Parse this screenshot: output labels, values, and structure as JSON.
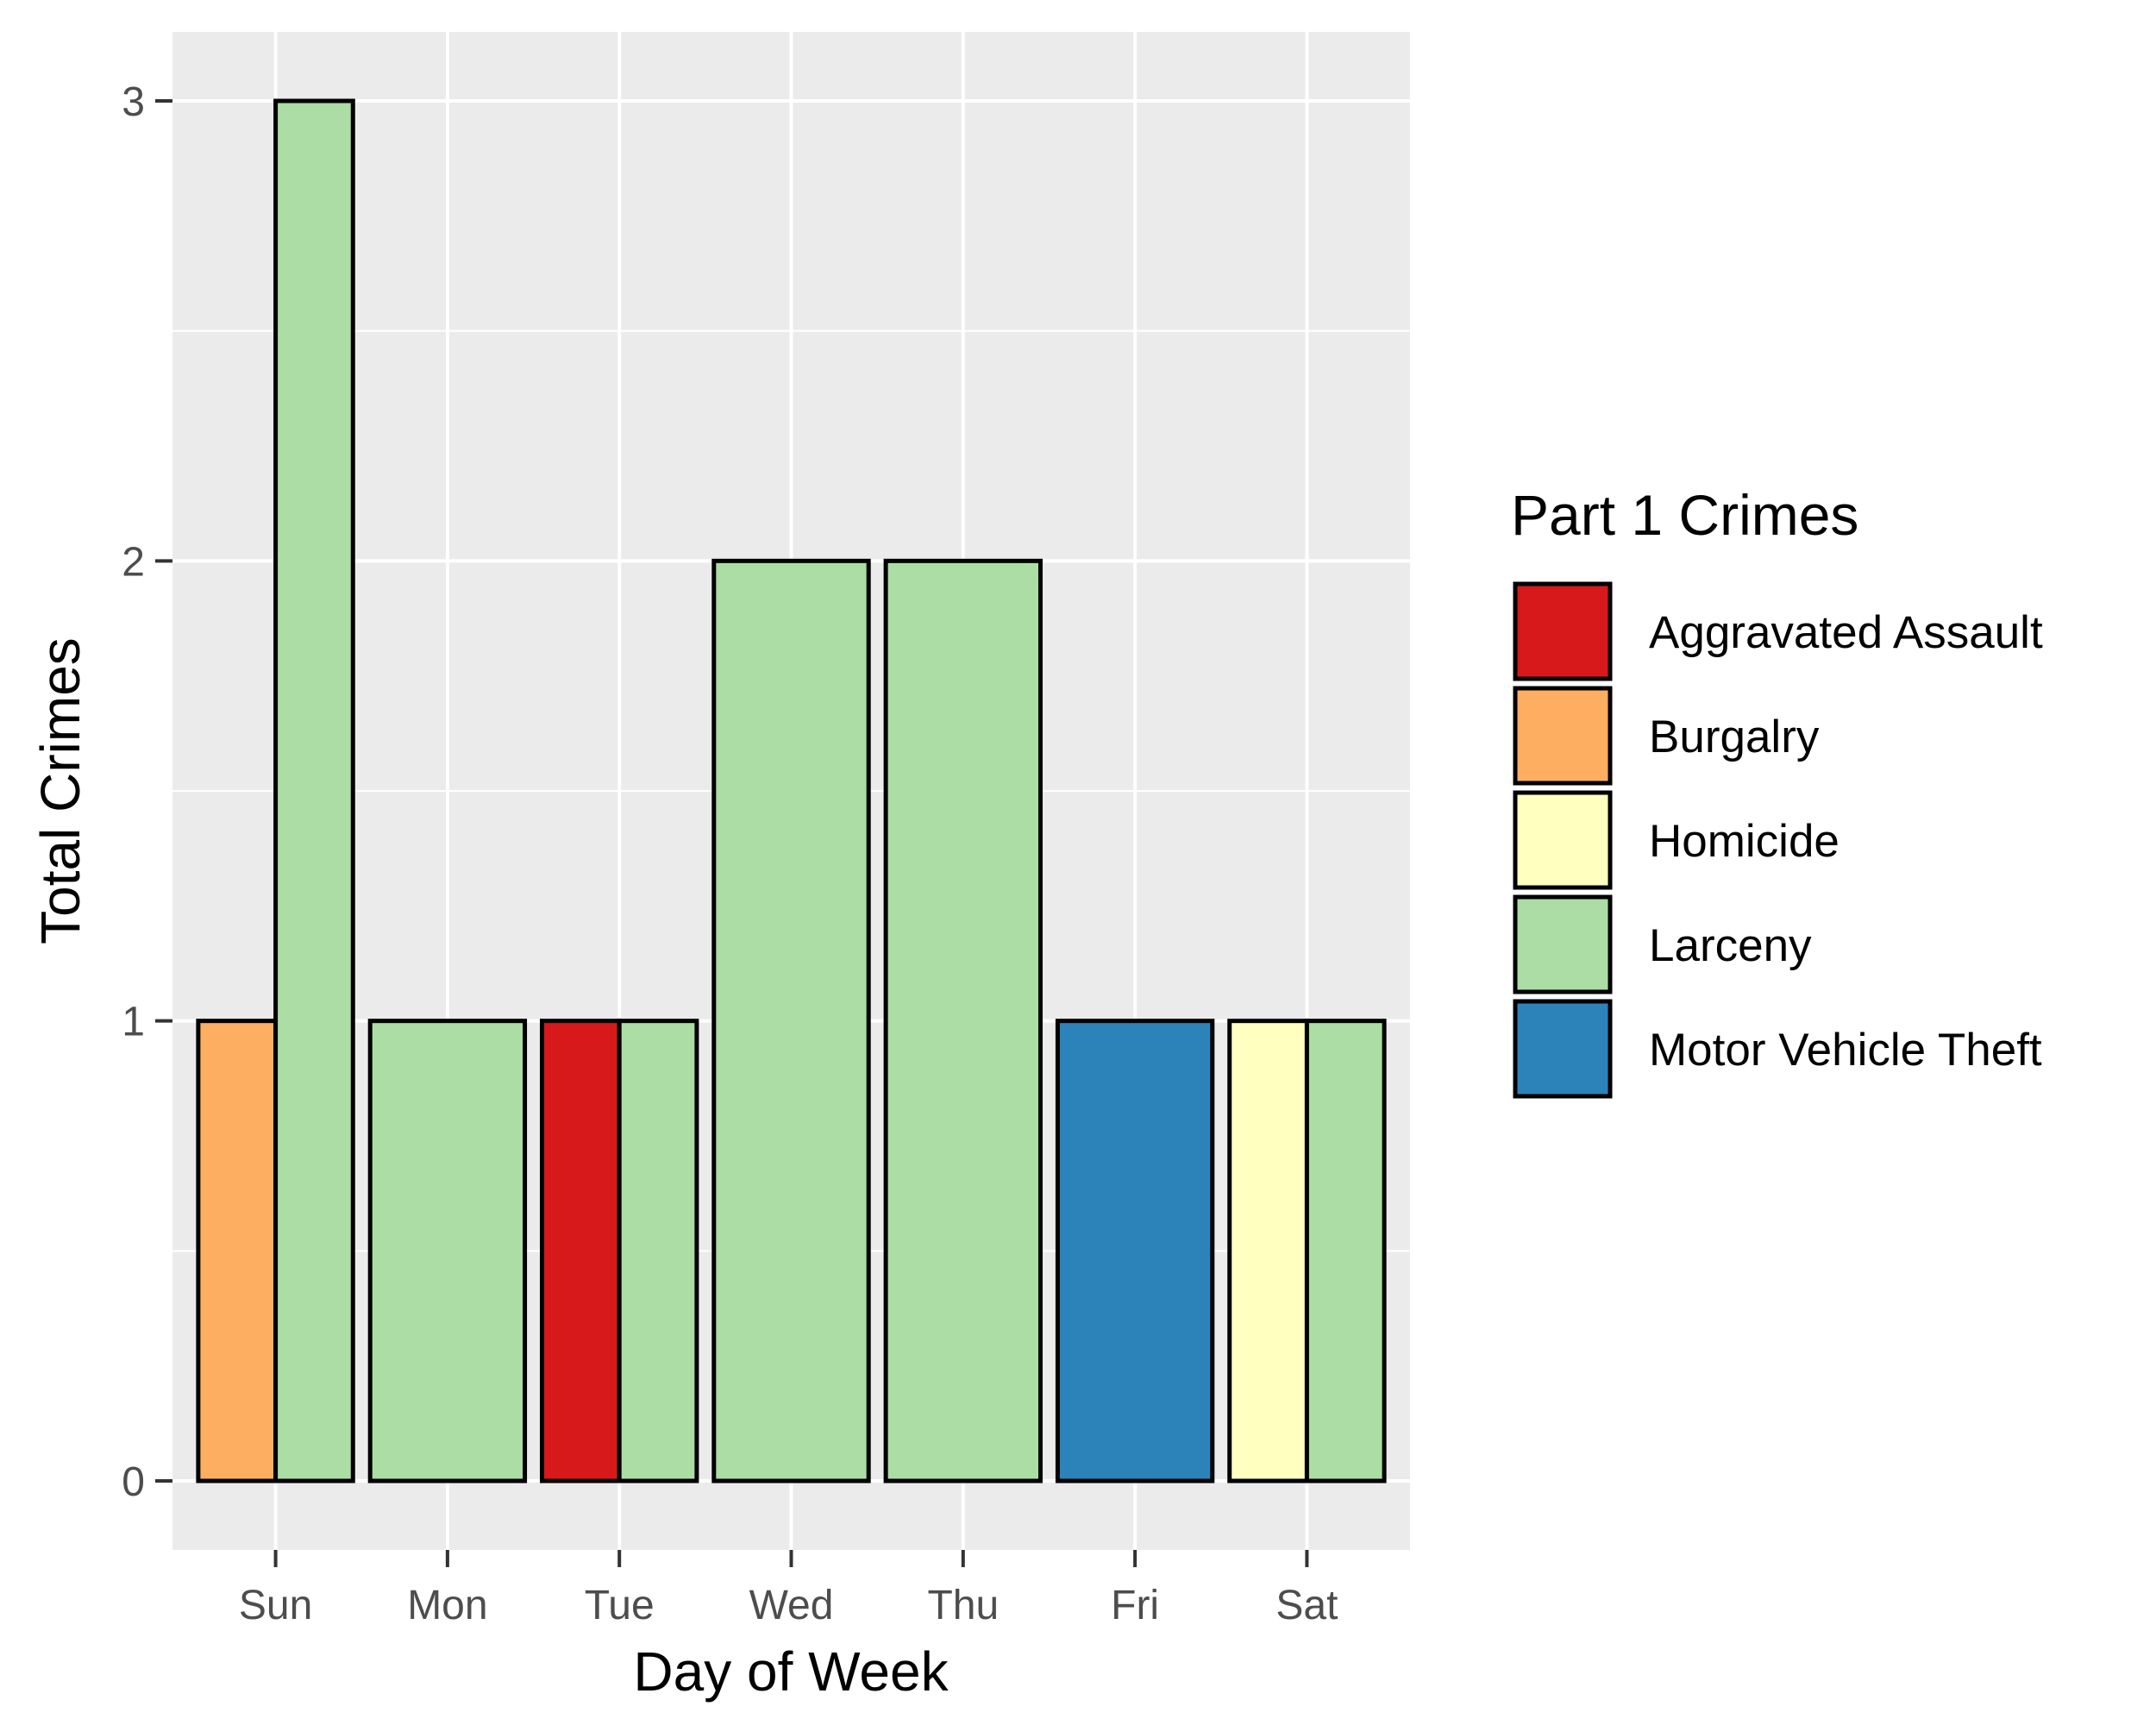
{
  "chart_data": {
    "type": "bar",
    "bar_mode": "dodge",
    "categories": [
      "Sun",
      "Mon",
      "Tue",
      "Wed",
      "Thu",
      "Fri",
      "Sat"
    ],
    "xlabel": "Day of Week",
    "ylabel": "Total Crimes",
    "ylim": [
      -0.15,
      3.15
    ],
    "y_ticks": [
      0,
      1,
      2,
      3
    ],
    "grid": true,
    "legend": {
      "title": "Part 1 Crimes",
      "position": "right",
      "entries": [
        {
          "name": "Aggravated Assault",
          "color": "#d7191c"
        },
        {
          "name": "Burgalry",
          "color": "#fdae61"
        },
        {
          "name": "Homicide",
          "color": "#ffffbf"
        },
        {
          "name": "Larceny",
          "color": "#abdda4"
        },
        {
          "name": "Motor Vehicle Theft",
          "color": "#2b83ba"
        }
      ]
    },
    "bars": [
      {
        "category": "Sun",
        "series": "Burgalry",
        "value": 1
      },
      {
        "category": "Sun",
        "series": "Larceny",
        "value": 3
      },
      {
        "category": "Mon",
        "series": "Larceny",
        "value": 1
      },
      {
        "category": "Tue",
        "series": "Aggravated Assault",
        "value": 1
      },
      {
        "category": "Tue",
        "series": "Larceny",
        "value": 1
      },
      {
        "category": "Wed",
        "series": "Larceny",
        "value": 2
      },
      {
        "category": "Thu",
        "series": "Larceny",
        "value": 2
      },
      {
        "category": "Fri",
        "series": "Motor Vehicle Theft",
        "value": 1
      },
      {
        "category": "Sat",
        "series": "Homicide",
        "value": 1
      },
      {
        "category": "Sat",
        "series": "Larceny",
        "value": 1
      }
    ]
  }
}
